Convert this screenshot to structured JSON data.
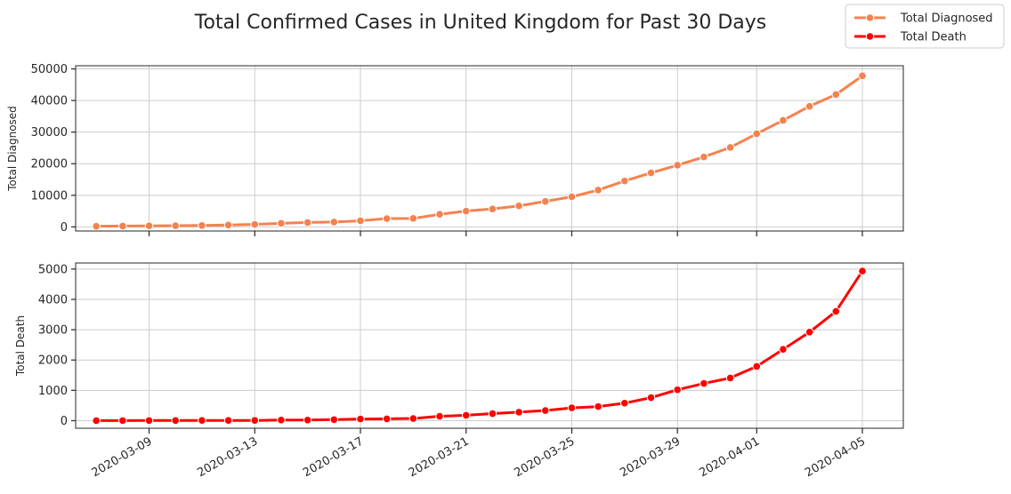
{
  "chart_data": {
    "type": "line",
    "title": "Total Confirmed Cases in United Kingdom for Past 30 Days",
    "legend_position": "top-right",
    "x_tick_labels": [
      "2020-03-09",
      "2020-03-13",
      "2020-03-17",
      "2020-03-21",
      "2020-03-25",
      "2020-03-29",
      "2020-04-01",
      "2020-04-05"
    ],
    "x": [
      "2020-03-07",
      "2020-03-08",
      "2020-03-09",
      "2020-03-10",
      "2020-03-11",
      "2020-03-12",
      "2020-03-13",
      "2020-03-14",
      "2020-03-15",
      "2020-03-16",
      "2020-03-17",
      "2020-03-18",
      "2020-03-19",
      "2020-03-20",
      "2020-03-21",
      "2020-03-22",
      "2020-03-23",
      "2020-03-24",
      "2020-03-25",
      "2020-03-26",
      "2020-03-27",
      "2020-03-28",
      "2020-03-29",
      "2020-03-30",
      "2020-03-31",
      "2020-04-01",
      "2020-04-02",
      "2020-04-03",
      "2020-04-04",
      "2020-04-05"
    ],
    "grid": true,
    "series": [
      {
        "name": "Total Diagnosed",
        "color": "#f4824f",
        "ylabel": "Total Diagnosed",
        "ylim": [
          -1300,
          51000
        ],
        "yticks": [
          0,
          10000,
          20000,
          30000,
          40000,
          50000
        ],
        "values": [
          206,
          273,
          321,
          373,
          456,
          590,
          798,
          1140,
          1391,
          1543,
          1950,
          2626,
          2689,
          3983,
          5018,
          5683,
          6650,
          8077,
          9529,
          11658,
          14543,
          17089,
          19522,
          22141,
          25150,
          29474,
          33718,
          38168,
          41903,
          47806
        ]
      },
      {
        "name": "Total Death",
        "color": "#ff0000",
        "ylabel": "Total Death",
        "ylim": [
          -250,
          5200
        ],
        "yticks": [
          0,
          1000,
          2000,
          3000,
          4000,
          5000
        ],
        "values": [
          2,
          3,
          5,
          6,
          8,
          8,
          8,
          21,
          21,
          35,
          55,
          60,
          71,
          144,
          177,
          233,
          281,
          335,
          422,
          465,
          578,
          759,
          1019,
          1228,
          1408,
          1789,
          2352,
          2921,
          3605,
          4934
        ]
      }
    ]
  }
}
